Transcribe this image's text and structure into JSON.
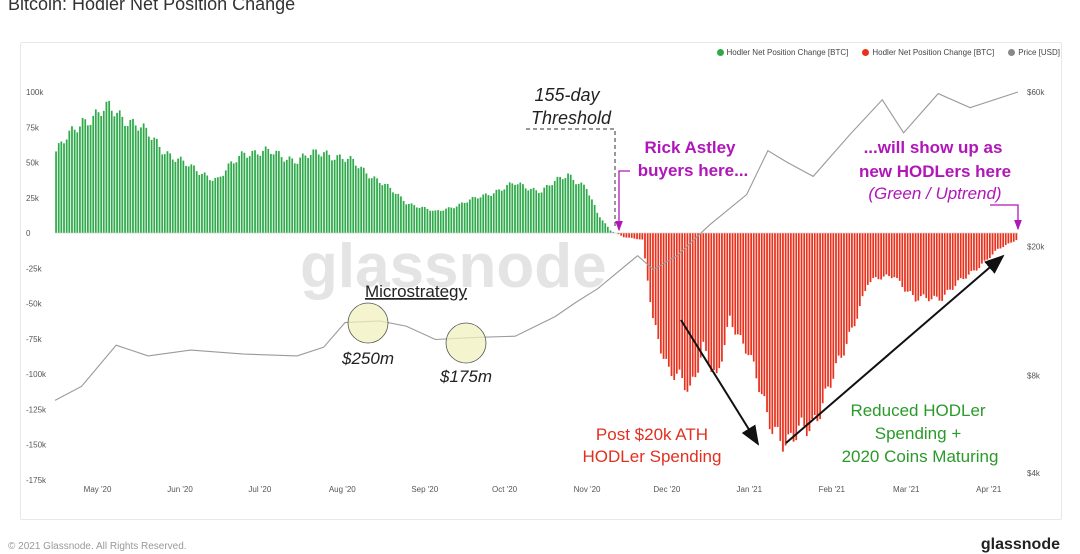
{
  "title": "Bitcoin: Hodler Net Position Change",
  "footer": {
    "copyright": "© 2021 Glassnode. All Rights Reserved.",
    "brand": "glassnode"
  },
  "watermark": "glassnode",
  "colors": {
    "green": "#2eaa4a",
    "red": "#e8321e",
    "price": "#aaaaaa",
    "magenta": "#b016b8",
    "annot_red": "#e03020",
    "annot_green": "#2a9a2a"
  },
  "legend": [
    {
      "label": "Hodler Net Position Change [BTC]",
      "color": "#2eaa4a"
    },
    {
      "label": "Hodler Net Position Change [BTC]",
      "color": "#e8321e"
    },
    {
      "label": "Price [USD]",
      "color": "#888888"
    }
  ],
  "chart_data": {
    "type": "bar",
    "y_ticks": [
      "100k",
      "75k",
      "50k",
      "25k",
      "0",
      "-25k",
      "-50k",
      "-75k",
      "-100k",
      "-125k",
      "-150k",
      "-175k"
    ],
    "y_right_ticks": [
      "$60k",
      "$20k",
      "$8k",
      "$4k"
    ],
    "ylim": [
      -175000,
      100000
    ],
    "x_ticks": [
      "May '20",
      "Jun '20",
      "Jul '20",
      "Aug '20",
      "Sep '20",
      "Oct '20",
      "Nov '20",
      "Dec '20",
      "Jan '21",
      "Feb '21",
      "Mar '21",
      "Apr '21"
    ],
    "x_range": [
      "2020-04-15",
      "2021-04-12"
    ],
    "hodler_net_position_points": [
      [
        "2020-04-15",
        58000
      ],
      [
        "2020-04-25",
        80000
      ],
      [
        "2020-05-05",
        88000
      ],
      [
        "2020-05-15",
        78000
      ],
      [
        "2020-05-25",
        60000
      ],
      [
        "2020-06-05",
        46000
      ],
      [
        "2020-06-15",
        38000
      ],
      [
        "2020-06-25",
        58000
      ],
      [
        "2020-07-05",
        57000
      ],
      [
        "2020-07-15",
        52000
      ],
      [
        "2020-07-25",
        58000
      ],
      [
        "2020-08-05",
        50000
      ],
      [
        "2020-08-15",
        37000
      ],
      [
        "2020-08-25",
        22000
      ],
      [
        "2020-09-05",
        15000
      ],
      [
        "2020-09-15",
        21000
      ],
      [
        "2020-09-25",
        28000
      ],
      [
        "2020-10-05",
        35000
      ],
      [
        "2020-10-15",
        30000
      ],
      [
        "2020-10-25",
        42000
      ],
      [
        "2020-11-01",
        32000
      ],
      [
        "2020-11-05",
        14000
      ],
      [
        "2020-11-10",
        2000
      ],
      [
        "2020-11-15",
        -3000
      ],
      [
        "2020-11-22",
        -5000
      ],
      [
        "2020-11-26",
        -60000
      ],
      [
        "2020-12-02",
        -100000
      ],
      [
        "2020-12-10",
        -110000
      ],
      [
        "2020-12-15",
        -80000
      ],
      [
        "2020-12-20",
        -108000
      ],
      [
        "2020-12-25",
        -60000
      ],
      [
        "2021-01-01",
        -85000
      ],
      [
        "2021-01-08",
        -130000
      ],
      [
        "2021-01-16",
        -150000
      ],
      [
        "2021-01-25",
        -135000
      ],
      [
        "2021-02-05",
        -90000
      ],
      [
        "2021-02-15",
        -35000
      ],
      [
        "2021-02-25",
        -30000
      ],
      [
        "2021-03-05",
        -48000
      ],
      [
        "2021-03-15",
        -45000
      ],
      [
        "2021-03-25",
        -30000
      ],
      [
        "2021-04-05",
        -12000
      ],
      [
        "2021-04-12",
        -5000
      ]
    ],
    "price_usd_points": [
      [
        "2020-04-15",
        6700
      ],
      [
        "2020-04-25",
        7500
      ],
      [
        "2020-05-08",
        9800
      ],
      [
        "2020-05-20",
        9200
      ],
      [
        "2020-06-05",
        9700
      ],
      [
        "2020-06-25",
        9200
      ],
      [
        "2020-07-15",
        9200
      ],
      [
        "2020-07-25",
        9900
      ],
      [
        "2020-08-02",
        11500
      ],
      [
        "2020-08-15",
        11800
      ],
      [
        "2020-08-25",
        11500
      ],
      [
        "2020-09-05",
        10200
      ],
      [
        "2020-09-20",
        10500
      ],
      [
        "2020-10-05",
        10700
      ],
      [
        "2020-10-20",
        12000
      ],
      [
        "2020-10-28",
        13500
      ],
      [
        "2020-11-05",
        15000
      ],
      [
        "2020-11-20",
        18500
      ],
      [
        "2020-11-26",
        17000
      ],
      [
        "2020-12-05",
        19000
      ],
      [
        "2020-12-17",
        23000
      ],
      [
        "2020-12-31",
        29000
      ],
      [
        "2021-01-08",
        40000
      ],
      [
        "2021-01-15",
        36000
      ],
      [
        "2021-01-25",
        33000
      ],
      [
        "2021-02-08",
        45000
      ],
      [
        "2021-02-20",
        56000
      ],
      [
        "2021-02-28",
        45000
      ],
      [
        "2021-03-13",
        60000
      ],
      [
        "2021-03-25",
        53000
      ],
      [
        "2021-04-12",
        60000
      ]
    ]
  },
  "annotations": {
    "threshold": [
      "155-day",
      "Threshold"
    ],
    "rick": [
      "Rick Astley",
      "buyers here..."
    ],
    "will": [
      "...will show up as",
      "new HODLers here"
    ],
    "green_uptrend": "(Green / Uptrend)",
    "microstrategy": "Microstrategy",
    "m250": "$250m",
    "m175": "$175m",
    "post": [
      "Post $20k ATH",
      "HODLer Spending"
    ],
    "reduced": [
      "Reduced HODLer",
      "Spending +",
      "2020 Coins Maturing"
    ]
  }
}
